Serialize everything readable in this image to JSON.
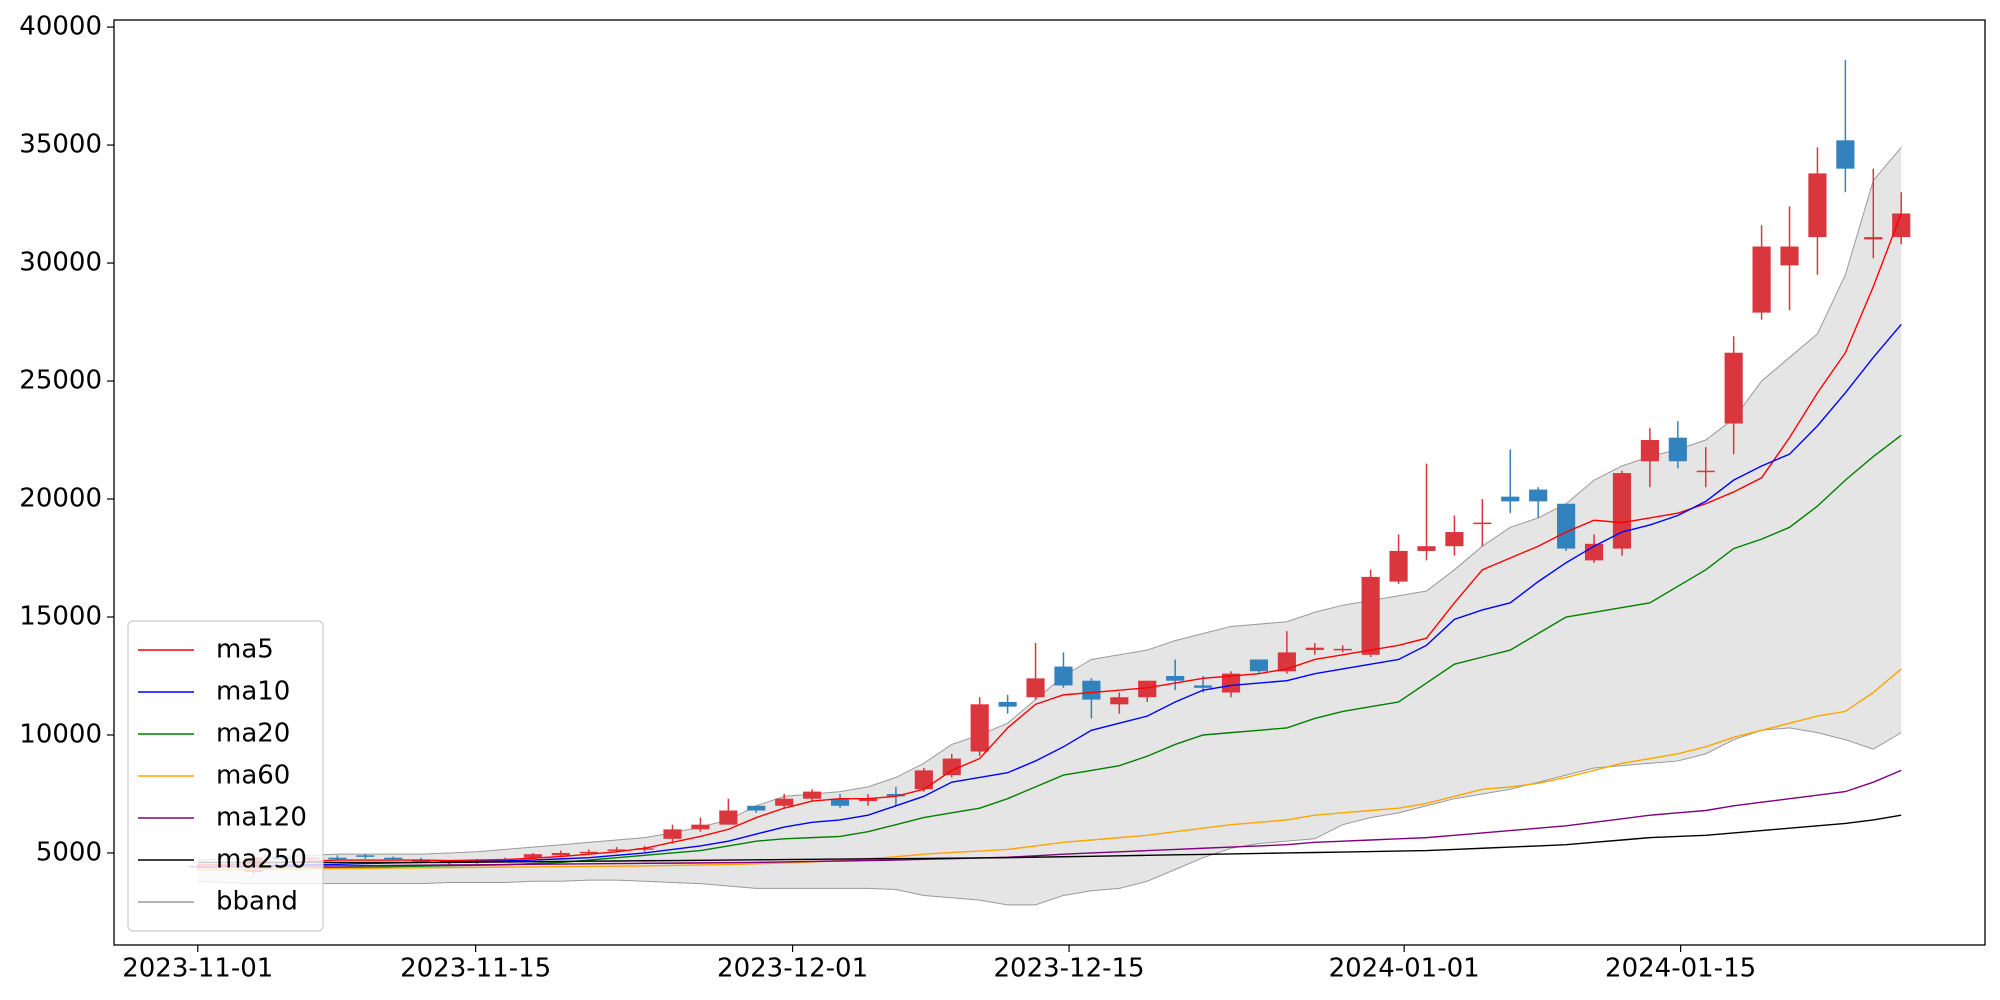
{
  "chart_data": {
    "type": "candlestick",
    "x": [
      0,
      1,
      2,
      3,
      4,
      5,
      6,
      7,
      8,
      9,
      10,
      11,
      12,
      13,
      14,
      15,
      16,
      17,
      18,
      19,
      20,
      21,
      22,
      23,
      24,
      25,
      26,
      27,
      28,
      29,
      30,
      31,
      32,
      33,
      34,
      35,
      36,
      37,
      38,
      39,
      40,
      41,
      42,
      43,
      44,
      45,
      46,
      47,
      48,
      49,
      50,
      51,
      52,
      53,
      54,
      55,
      56,
      57,
      58,
      59,
      60,
      61
    ],
    "xlim": [
      -3,
      64
    ],
    "xticks": [
      {
        "value": 0,
        "label": "2023-11-01"
      },
      {
        "value": 9.95,
        "label": "2023-11-15"
      },
      {
        "value": 21.3,
        "label": "2023-12-01"
      },
      {
        "value": 31.2,
        "label": "2023-12-15"
      },
      {
        "value": 43.2,
        "label": "2024-01-01"
      },
      {
        "value": 53.1,
        "label": "2024-01-15"
      }
    ],
    "ylim": [
      1100,
      40300
    ],
    "yticks": [
      5000,
      10000,
      15000,
      20000,
      25000,
      30000,
      35000,
      40000
    ],
    "legend": "lower left",
    "candles": {
      "up_color": "#d9363e",
      "down_color": "#3182bd",
      "open": [
        4400,
        4450,
        4200,
        4800,
        4750,
        4800,
        4900,
        4800,
        4700,
        4600,
        4650,
        4700,
        4800,
        4900,
        5000,
        5100,
        5150,
        5600,
        6000,
        6200,
        7000,
        7000,
        7300,
        7300,
        7200,
        7500,
        7700,
        8300,
        9300,
        11400,
        11600,
        12900,
        12300,
        11300,
        11600,
        12500,
        12100,
        11800,
        13200,
        12700,
        13600,
        13600,
        13400,
        16500,
        17800,
        18000,
        19000,
        20100,
        20400,
        19800,
        17400,
        17900,
        21600,
        22600,
        21200,
        23200,
        27900,
        29900,
        31100,
        35200,
        31000,
        31100
      ],
      "high": [
        4500,
        4550,
        5000,
        4900,
        4850,
        4900,
        4950,
        4850,
        4800,
        4700,
        4750,
        4800,
        5000,
        5100,
        5150,
        5250,
        5300,
        6200,
        6500,
        7300,
        7000,
        7500,
        7700,
        7500,
        7500,
        7800,
        8600,
        9200,
        11600,
        11700,
        13900,
        13500,
        12400,
        11800,
        12300,
        13200,
        12500,
        12700,
        13200,
        14400,
        13900,
        13800,
        17000,
        18500,
        21500,
        19300,
        20000,
        22100,
        20500,
        19800,
        18500,
        21200,
        23000,
        23300,
        22200,
        26900,
        31600,
        32400,
        34900,
        38600,
        34000,
        33000
      ],
      "low": [
        4300,
        4400,
        4100,
        4700,
        4650,
        4700,
        4750,
        4700,
        4600,
        4500,
        4550,
        4600,
        4750,
        4850,
        4950,
        5050,
        5050,
        5400,
        5900,
        6200,
        6700,
        6900,
        7200,
        6900,
        7000,
        7000,
        7600,
        8200,
        9100,
        10900,
        11500,
        12000,
        10700,
        10900,
        11400,
        11900,
        11800,
        11600,
        12600,
        12600,
        13400,
        13500,
        13300,
        16400,
        17400,
        17600,
        18000,
        19400,
        19200,
        17800,
        17300,
        17600,
        20500,
        21300,
        20500,
        21900,
        27600,
        28000,
        29500,
        33000,
        30200,
        30800
      ],
      "close": [
        4450,
        4500,
        4800,
        4750,
        4800,
        4750,
        4850,
        4750,
        4650,
        4650,
        4700,
        4750,
        4950,
        5000,
        5050,
        5150,
        5200,
        6000,
        6200,
        6800,
        6800,
        7300,
        7600,
        7000,
        7300,
        7400,
        8500,
        9000,
        11300,
        11200,
        12400,
        12100,
        11500,
        11600,
        12300,
        12300,
        12000,
        12600,
        12700,
        13500,
        13700,
        13650,
        16700,
        17800,
        18000,
        18600,
        19000,
        19900,
        19900,
        17900,
        18100,
        21100,
        22500,
        21600,
        21200,
        26200,
        30700,
        30700,
        33800,
        34000,
        31100,
        32100
      ]
    },
    "series": [
      {
        "name": "ma5",
        "color": "#ff0000",
        "values": [
          4500,
          4500,
          4550,
          4600,
          4650,
          4700,
          4700,
          4700,
          4700,
          4680,
          4700,
          4720,
          4780,
          4850,
          4950,
          5050,
          5200,
          5450,
          5700,
          6000,
          6500,
          6900,
          7200,
          7300,
          7300,
          7400,
          7700,
          8500,
          9000,
          10300,
          11300,
          11700,
          11800,
          11900,
          12000,
          12200,
          12400,
          12500,
          12600,
          12800,
          13200,
          13400,
          13600,
          13800,
          14100,
          15600,
          17000,
          17500,
          18000,
          18600,
          19100,
          19000,
          19200,
          19400,
          19800,
          20300,
          20900,
          22600,
          24500,
          26200,
          29000,
          32100
        ]
      },
      {
        "name": "ma10",
        "color": "#0000ff",
        "values": [
          4400,
          4420,
          4450,
          4480,
          4500,
          4520,
          4550,
          4580,
          4600,
          4620,
          4640,
          4660,
          4700,
          4750,
          4800,
          4900,
          5000,
          5150,
          5300,
          5500,
          5800,
          6100,
          6300,
          6400,
          6600,
          7000,
          7400,
          8000,
          8200,
          8400,
          8900,
          9500,
          10200,
          10500,
          10800,
          11400,
          11900,
          12100,
          12200,
          12300,
          12600,
          12800,
          13000,
          13200,
          13800,
          14900,
          15300,
          15600,
          16500,
          17300,
          18000,
          18600,
          18900,
          19300,
          19900,
          20800,
          21400,
          21900,
          23100,
          24500,
          26000,
          27400
        ]
      },
      {
        "name": "ma20",
        "color": "#008000",
        "values": [
          4300,
          4300,
          4320,
          4340,
          4360,
          4380,
          4400,
          4420,
          4440,
          4460,
          4480,
          4500,
          4550,
          4600,
          4700,
          4800,
          4900,
          5000,
          5100,
          5300,
          5500,
          5600,
          5650,
          5700,
          5900,
          6200,
          6500,
          6700,
          6900,
          7300,
          7800,
          8300,
          8500,
          8700,
          9100,
          9600,
          10000,
          10100,
          10200,
          10300,
          10700,
          11000,
          11200,
          11400,
          12200,
          13000,
          13300,
          13600,
          14300,
          15000,
          15200,
          15400,
          15600,
          16300,
          17000,
          17900,
          18300,
          18800,
          19700,
          20800,
          21800,
          22700
        ]
      },
      {
        "name": "ma60",
        "color": "#ffa500",
        "values": [
          4300,
          4300,
          4310,
          4320,
          4330,
          4340,
          4350,
          4360,
          4370,
          4380,
          4390,
          4400,
          4410,
          4420,
          4430,
          4440,
          4450,
          4470,
          4490,
          4510,
          4540,
          4580,
          4620,
          4680,
          4760,
          4840,
          4950,
          5020,
          5080,
          5150,
          5300,
          5450,
          5550,
          5650,
          5750,
          5900,
          6050,
          6200,
          6300,
          6400,
          6600,
          6700,
          6800,
          6900,
          7100,
          7400,
          7700,
          7800,
          7950,
          8200,
          8500,
          8800,
          9000,
          9200,
          9500,
          9900,
          10200,
          10500,
          10800,
          11000,
          11800,
          12800
        ]
      },
      {
        "name": "ma120",
        "color": "#800080",
        "values": [
          4400,
          4410,
          4420,
          4430,
          4440,
          4450,
          4460,
          4470,
          4480,
          4490,
          4500,
          4510,
          4520,
          4530,
          4540,
          4550,
          4560,
          4570,
          4580,
          4590,
          4600,
          4620,
          4640,
          4660,
          4680,
          4700,
          4730,
          4760,
          4790,
          4820,
          4880,
          4950,
          5000,
          5050,
          5100,
          5150,
          5200,
          5250,
          5300,
          5350,
          5450,
          5500,
          5550,
          5600,
          5650,
          5750,
          5850,
          5950,
          6050,
          6150,
          6300,
          6450,
          6600,
          6700,
          6800,
          7000,
          7150,
          7300,
          7450,
          7600,
          8000,
          8500
        ]
      },
      {
        "name": "ma250",
        "color": "#000000",
        "values": [
          4600,
          4600,
          4600,
          4600,
          4600,
          4600,
          4600,
          4600,
          4600,
          4600,
          4610,
          4620,
          4630,
          4640,
          4650,
          4660,
          4670,
          4680,
          4690,
          4700,
          4710,
          4720,
          4730,
          4740,
          4750,
          4760,
          4770,
          4780,
          4790,
          4800,
          4820,
          4840,
          4860,
          4880,
          4900,
          4920,
          4940,
          4960,
          4980,
          5000,
          5020,
          5040,
          5060,
          5080,
          5100,
          5150,
          5200,
          5250,
          5300,
          5350,
          5450,
          5550,
          5650,
          5700,
          5750,
          5850,
          5950,
          6050,
          6150,
          6250,
          6400,
          6600
        ]
      }
    ],
    "band": {
      "name": "bband",
      "color": "#e5e5e5",
      "edge_color": "#999999",
      "upper": [
        4700,
        4750,
        4800,
        4850,
        4900,
        4950,
        4950,
        4950,
        4950,
        5000,
        5050,
        5150,
        5250,
        5350,
        5450,
        5550,
        5650,
        5850,
        6100,
        6400,
        7000,
        7400,
        7500,
        7600,
        7800,
        8200,
        8800,
        9600,
        10000,
        10500,
        11500,
        12500,
        13200,
        13400,
        13600,
        14000,
        14300,
        14600,
        14700,
        14800,
        15200,
        15500,
        15700,
        15900,
        16100,
        17000,
        18000,
        18800,
        19200,
        19800,
        20800,
        21400,
        21800,
        22100,
        22500,
        23400,
        25000,
        26000,
        27000,
        29500,
        33500,
        34900
      ],
      "lower": [
        3800,
        3750,
        3700,
        3700,
        3700,
        3700,
        3700,
        3700,
        3700,
        3750,
        3750,
        3750,
        3800,
        3800,
        3850,
        3850,
        3800,
        3750,
        3700,
        3600,
        3500,
        3500,
        3500,
        3500,
        3500,
        3450,
        3200,
        3100,
        3000,
        2800,
        2800,
        3200,
        3400,
        3500,
        3800,
        4300,
        4800,
        5200,
        5400,
        5500,
        5600,
        6200,
        6500,
        6700,
        7000,
        7300,
        7500,
        7700,
        8000,
        8300,
        8600,
        8700,
        8800,
        8900,
        9200,
        9800,
        10200,
        10300,
        10100,
        9800,
        9400,
        10100
      ]
    }
  }
}
